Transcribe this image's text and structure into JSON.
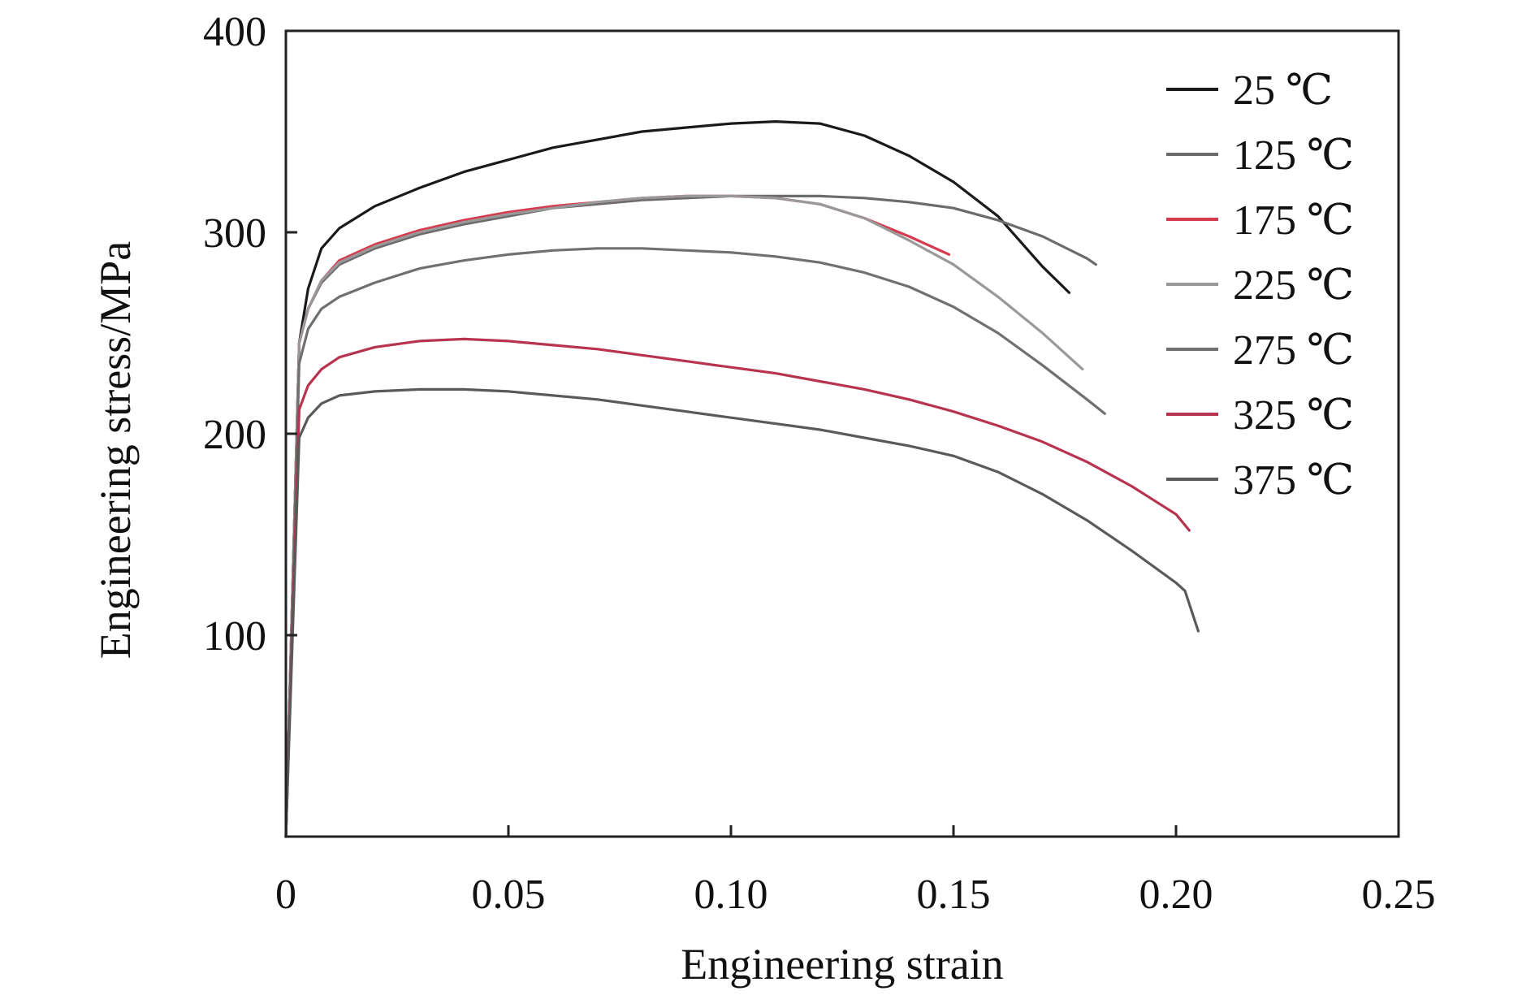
{
  "chart_data": {
    "type": "line",
    "title": "",
    "xlabel": "Engineering strain",
    "ylabel": "Engineering stress/MPa",
    "xlim": [
      0,
      0.25
    ],
    "ylim": [
      0,
      400
    ],
    "xticks": [
      {
        "value": 0,
        "label": "0"
      },
      {
        "value": 0.05,
        "label": "0.05"
      },
      {
        "value": 0.1,
        "label": "0.10"
      },
      {
        "value": 0.15,
        "label": "0.15"
      },
      {
        "value": 0.2,
        "label": "0.20"
      },
      {
        "value": 0.25,
        "label": "0.25"
      }
    ],
    "yticks": [
      {
        "value": 100,
        "label": "100"
      },
      {
        "value": 200,
        "label": "200"
      },
      {
        "value": 300,
        "label": "300"
      },
      {
        "value": 400,
        "label": "400"
      }
    ],
    "grid": false,
    "legend_position": "top-right",
    "series": [
      {
        "name": "25 ℃",
        "color": "#1a1a1a",
        "points": [
          [
            0,
            0
          ],
          [
            0.003,
            245
          ],
          [
            0.005,
            272
          ],
          [
            0.008,
            292
          ],
          [
            0.012,
            302
          ],
          [
            0.02,
            313
          ],
          [
            0.03,
            322
          ],
          [
            0.04,
            330
          ],
          [
            0.05,
            336
          ],
          [
            0.06,
            342
          ],
          [
            0.07,
            346
          ],
          [
            0.08,
            350
          ],
          [
            0.09,
            352
          ],
          [
            0.1,
            354
          ],
          [
            0.11,
            355
          ],
          [
            0.12,
            354
          ],
          [
            0.13,
            348
          ],
          [
            0.14,
            338
          ],
          [
            0.15,
            325
          ],
          [
            0.16,
            308
          ],
          [
            0.17,
            283
          ],
          [
            0.176,
            270
          ]
        ]
      },
      {
        "name": "125 ℃",
        "color": "#6b6b6b",
        "points": [
          [
            0,
            0
          ],
          [
            0.003,
            245
          ],
          [
            0.005,
            262
          ],
          [
            0.008,
            275
          ],
          [
            0.012,
            284
          ],
          [
            0.02,
            292
          ],
          [
            0.03,
            299
          ],
          [
            0.04,
            304
          ],
          [
            0.05,
            308
          ],
          [
            0.06,
            312
          ],
          [
            0.07,
            314
          ],
          [
            0.08,
            316
          ],
          [
            0.09,
            317
          ],
          [
            0.1,
            318
          ],
          [
            0.11,
            318
          ],
          [
            0.12,
            318
          ],
          [
            0.13,
            317
          ],
          [
            0.14,
            315
          ],
          [
            0.15,
            312
          ],
          [
            0.16,
            306
          ],
          [
            0.17,
            298
          ],
          [
            0.18,
            287
          ],
          [
            0.182,
            284
          ]
        ]
      },
      {
        "name": "175 ℃",
        "color": "#d63a4e",
        "points": [
          [
            0,
            0
          ],
          [
            0.003,
            245
          ],
          [
            0.005,
            262
          ],
          [
            0.008,
            276
          ],
          [
            0.012,
            286
          ],
          [
            0.02,
            294
          ],
          [
            0.03,
            301
          ],
          [
            0.04,
            306
          ],
          [
            0.05,
            310
          ],
          [
            0.06,
            313
          ],
          [
            0.07,
            315
          ],
          [
            0.08,
            317
          ],
          [
            0.09,
            318
          ],
          [
            0.1,
            318
          ],
          [
            0.11,
            317
          ],
          [
            0.12,
            314
          ],
          [
            0.13,
            307
          ],
          [
            0.14,
            298
          ],
          [
            0.149,
            289
          ]
        ]
      },
      {
        "name": "225 ℃",
        "color": "#999999",
        "points": [
          [
            0,
            0
          ],
          [
            0.003,
            245
          ],
          [
            0.005,
            262
          ],
          [
            0.008,
            276
          ],
          [
            0.012,
            285
          ],
          [
            0.02,
            293
          ],
          [
            0.03,
            300
          ],
          [
            0.04,
            305
          ],
          [
            0.05,
            309
          ],
          [
            0.06,
            312
          ],
          [
            0.07,
            315
          ],
          [
            0.08,
            317
          ],
          [
            0.09,
            318
          ],
          [
            0.1,
            318
          ],
          [
            0.11,
            317
          ],
          [
            0.12,
            314
          ],
          [
            0.13,
            307
          ],
          [
            0.14,
            296
          ],
          [
            0.15,
            284
          ],
          [
            0.16,
            268
          ],
          [
            0.17,
            250
          ],
          [
            0.179,
            232
          ]
        ]
      },
      {
        "name": "275 ℃",
        "color": "#707070",
        "points": [
          [
            0,
            0
          ],
          [
            0.003,
            235
          ],
          [
            0.005,
            252
          ],
          [
            0.008,
            262
          ],
          [
            0.012,
            268
          ],
          [
            0.02,
            275
          ],
          [
            0.03,
            282
          ],
          [
            0.04,
            286
          ],
          [
            0.05,
            289
          ],
          [
            0.06,
            291
          ],
          [
            0.07,
            292
          ],
          [
            0.08,
            292
          ],
          [
            0.09,
            291
          ],
          [
            0.1,
            290
          ],
          [
            0.11,
            288
          ],
          [
            0.12,
            285
          ],
          [
            0.13,
            280
          ],
          [
            0.14,
            273
          ],
          [
            0.15,
            263
          ],
          [
            0.16,
            250
          ],
          [
            0.17,
            234
          ],
          [
            0.18,
            217
          ],
          [
            0.184,
            210
          ]
        ]
      },
      {
        "name": "325 ℃",
        "color": "#b8334f",
        "points": [
          [
            0,
            0
          ],
          [
            0.003,
            212
          ],
          [
            0.005,
            224
          ],
          [
            0.008,
            232
          ],
          [
            0.012,
            238
          ],
          [
            0.02,
            243
          ],
          [
            0.03,
            246
          ],
          [
            0.04,
            247
          ],
          [
            0.05,
            246
          ],
          [
            0.06,
            244
          ],
          [
            0.07,
            242
          ],
          [
            0.08,
            239
          ],
          [
            0.09,
            236
          ],
          [
            0.1,
            233
          ],
          [
            0.11,
            230
          ],
          [
            0.12,
            226
          ],
          [
            0.13,
            222
          ],
          [
            0.14,
            217
          ],
          [
            0.15,
            211
          ],
          [
            0.16,
            204
          ],
          [
            0.17,
            196
          ],
          [
            0.18,
            186
          ],
          [
            0.19,
            174
          ],
          [
            0.2,
            160
          ],
          [
            0.203,
            152
          ]
        ]
      },
      {
        "name": "375 ℃",
        "color": "#5a5a5a",
        "points": [
          [
            0,
            0
          ],
          [
            0.003,
            198
          ],
          [
            0.005,
            208
          ],
          [
            0.008,
            215
          ],
          [
            0.012,
            219
          ],
          [
            0.02,
            221
          ],
          [
            0.03,
            222
          ],
          [
            0.04,
            222
          ],
          [
            0.05,
            221
          ],
          [
            0.06,
            219
          ],
          [
            0.07,
            217
          ],
          [
            0.08,
            214
          ],
          [
            0.09,
            211
          ],
          [
            0.1,
            208
          ],
          [
            0.11,
            205
          ],
          [
            0.12,
            202
          ],
          [
            0.13,
            198
          ],
          [
            0.14,
            194
          ],
          [
            0.15,
            189
          ],
          [
            0.16,
            181
          ],
          [
            0.17,
            170
          ],
          [
            0.18,
            157
          ],
          [
            0.19,
            142
          ],
          [
            0.2,
            126
          ],
          [
            0.202,
            122
          ],
          [
            0.205,
            102
          ]
        ]
      }
    ]
  }
}
